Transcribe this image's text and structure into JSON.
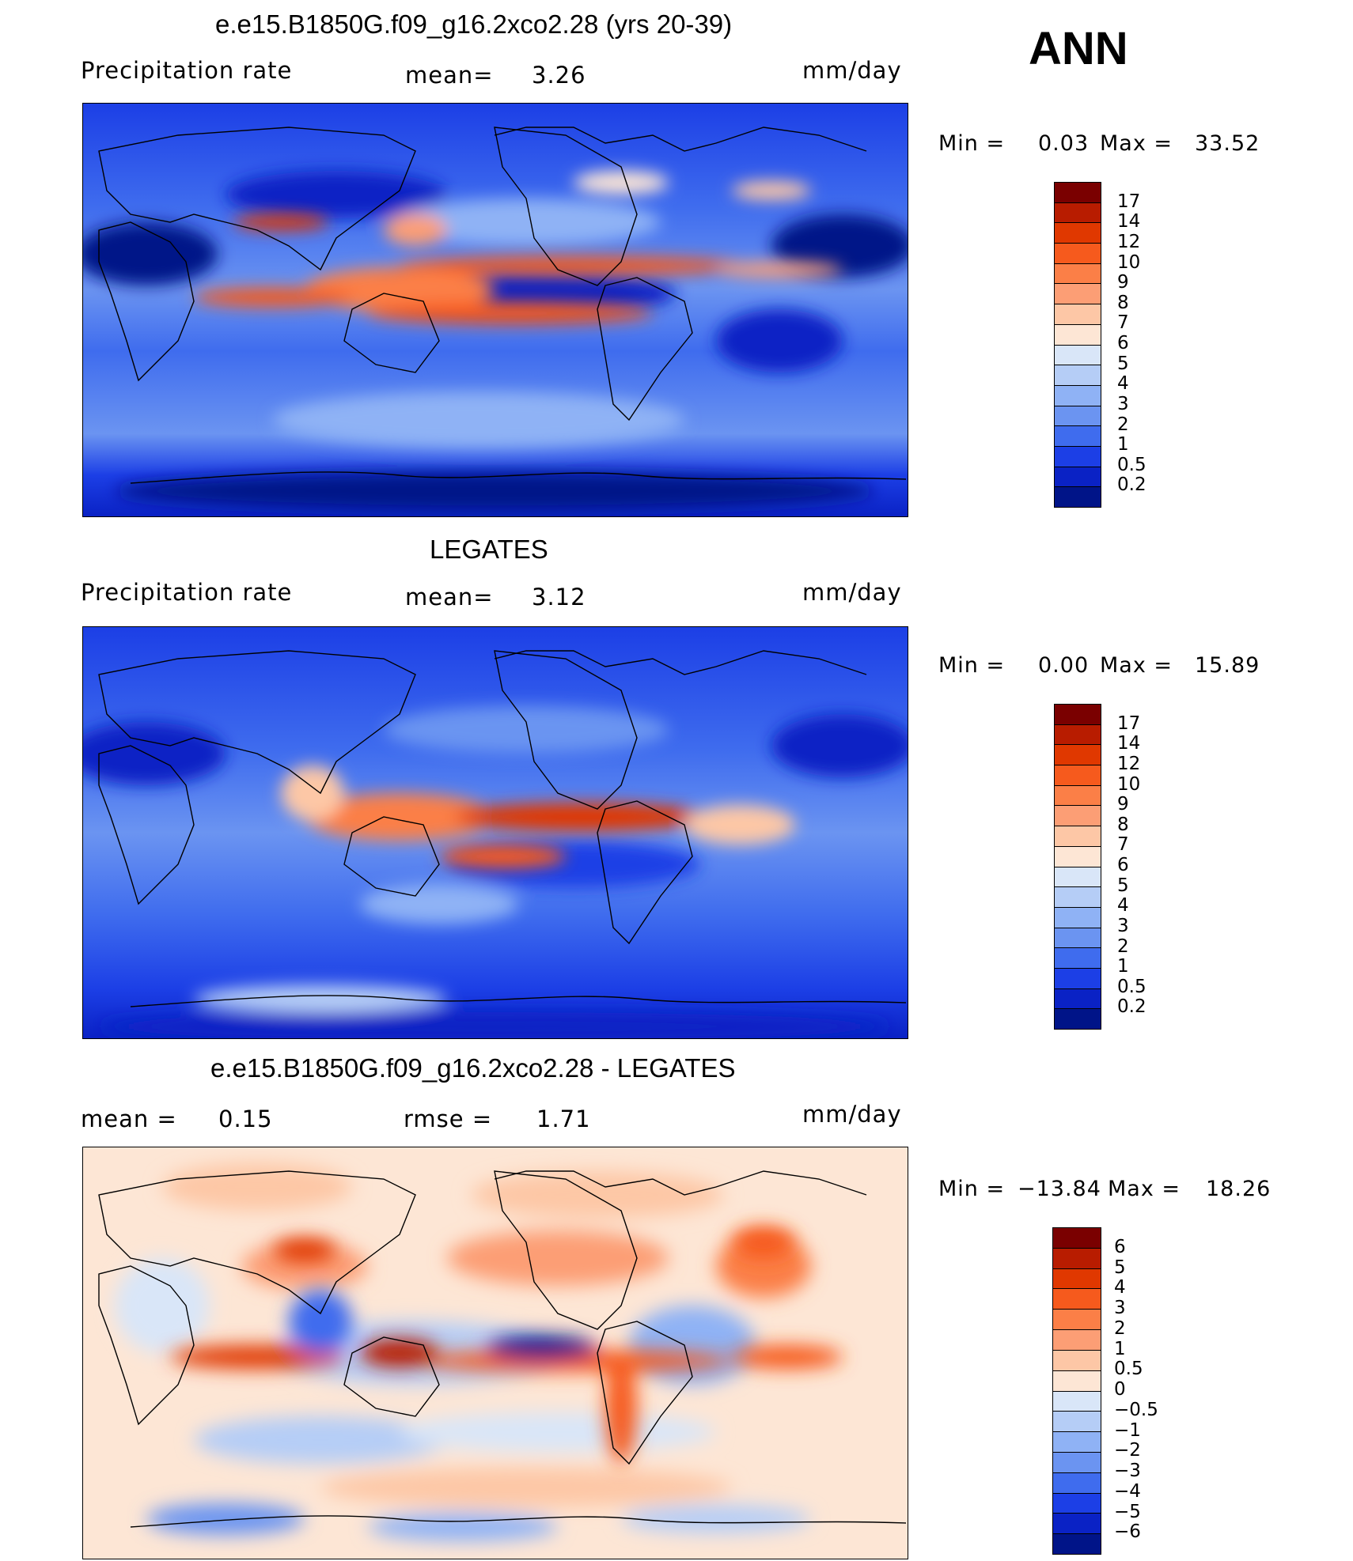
{
  "season": "ANN",
  "chart_data": [
    {
      "type": "heatmap",
      "title": "e.e15.B1850G.f09_g16.2xco2.28 (yrs 20-39)",
      "variable": "Precipitation  rate",
      "mean_label": "mean=",
      "mean": "3.26",
      "units": "mm/day",
      "min_label": "Min  =",
      "min": "0.03",
      "max_label": "Max  =",
      "max": "33.52",
      "colorbar_levels": [
        "17",
        "14",
        "12",
        "10",
        "9",
        "8",
        "7",
        "6",
        "5",
        "4",
        "3",
        "2",
        "1",
        "0.5",
        "0.2"
      ],
      "colorbar_colors": [
        "#7a0000",
        "#b81c00",
        "#e03800",
        "#f65a1d",
        "#fb7f47",
        "#fc9e75",
        "#fdc7a6",
        "#fde6d5",
        "#d9e6f8",
        "#b5cdf6",
        "#8fb2f5",
        "#6b94f1",
        "#3f6cee",
        "#1c3fe6",
        "#0a22c5",
        "#001488"
      ]
    },
    {
      "type": "heatmap",
      "title": "LEGATES",
      "variable": "Precipitation  rate",
      "mean_label": "mean=",
      "mean": "3.12",
      "units": "mm/day",
      "min_label": "Min  =",
      "min": "0.00",
      "max_label": "Max  =",
      "max": "15.89",
      "colorbar_levels": [
        "17",
        "14",
        "12",
        "10",
        "9",
        "8",
        "7",
        "6",
        "5",
        "4",
        "3",
        "2",
        "1",
        "0.5",
        "0.2"
      ],
      "colorbar_colors": [
        "#7a0000",
        "#b81c00",
        "#e03800",
        "#f65a1d",
        "#fb7f47",
        "#fc9e75",
        "#fdc7a6",
        "#fde6d5",
        "#d9e6f8",
        "#b5cdf6",
        "#8fb2f5",
        "#6b94f1",
        "#3f6cee",
        "#1c3fe6",
        "#0a22c5",
        "#001488"
      ]
    },
    {
      "type": "heatmap",
      "title": "e.e15.B1850G.f09_g16.2xco2.28 - LEGATES",
      "mean_label": "mean  =",
      "mean": "0.15",
      "rmse_label": "rmse  =",
      "rmse": "1.71",
      "units": "mm/day",
      "min_label": "Min  =",
      "min": "−13.84",
      "max_label": "Max  =",
      "max": "18.26",
      "colorbar_levels": [
        "6",
        "5",
        "4",
        "3",
        "2",
        "1",
        "0.5",
        "0",
        "−0.5",
        "−1",
        "−2",
        "−3",
        "−4",
        "−5",
        "−6"
      ],
      "colorbar_colors": [
        "#7a0000",
        "#b81c00",
        "#e03800",
        "#f65a1d",
        "#fb7f47",
        "#fc9e75",
        "#fdc7a6",
        "#fde6d5",
        "#d9e6f8",
        "#b5cdf6",
        "#8fb2f5",
        "#6b94f1",
        "#3f6cee",
        "#1c3fe6",
        "#0a22c5",
        "#001488"
      ]
    }
  ]
}
